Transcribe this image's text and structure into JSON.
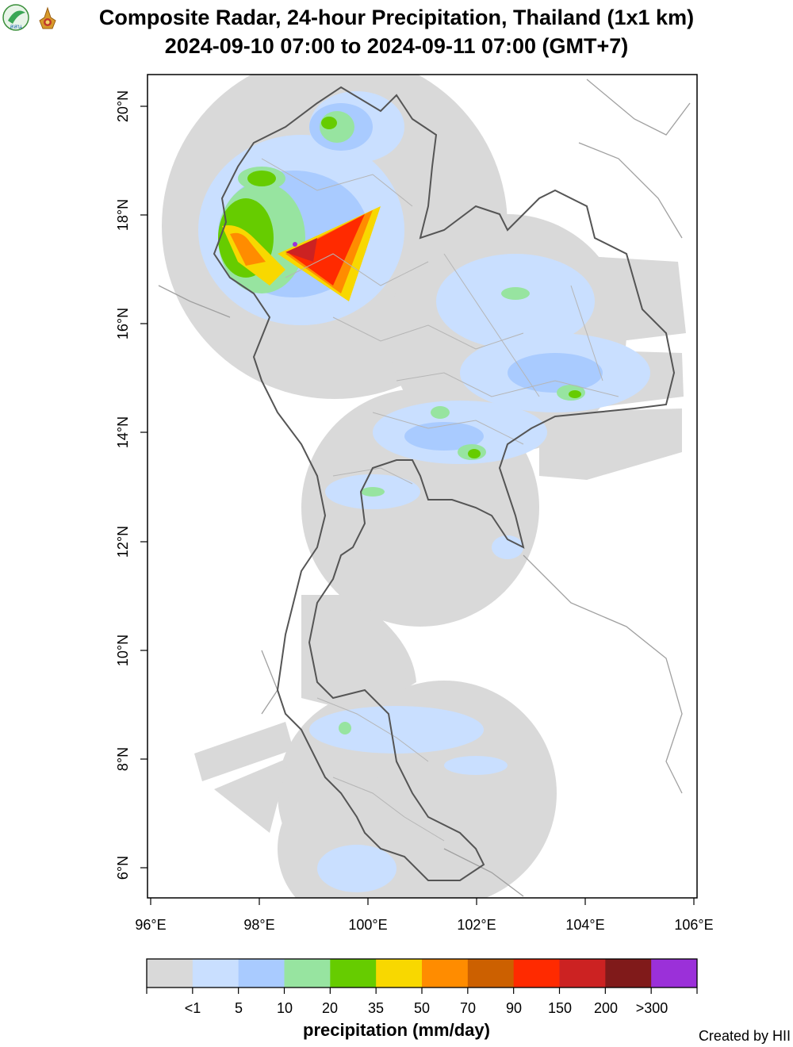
{
  "title_line1": "Composite Radar, 24-hour Precipitation, Thailand (1x1 km)",
  "title_line2": "2024-09-10 07:00 to 2024-09-11 07:00 (GMT+7)",
  "logos": [
    {
      "name": "hii-logo",
      "text": "สสน"
    },
    {
      "name": "royal-emblem-logo",
      "text": ""
    }
  ],
  "axes": {
    "x_ticks": [
      "96°E",
      "98°E",
      "100°E",
      "102°E",
      "104°E",
      "106°E"
    ],
    "y_ticks": [
      "6°N",
      "8°N",
      "10°N",
      "12°N",
      "14°N",
      "16°N",
      "18°N",
      "20°N"
    ]
  },
  "legend": {
    "title": "precipitation (mm/day)",
    "colors": [
      "#d9d9d9",
      "#c9dfff",
      "#a9cbff",
      "#97e4a0",
      "#66cc00",
      "#f8d800",
      "#ff8c00",
      "#cc6000",
      "#ff2a00",
      "#cc2222",
      "#801a1a",
      "#9b30d9"
    ],
    "labels": [
      "<1",
      "5",
      "10",
      "20",
      "35",
      "50",
      "70",
      "90",
      "150",
      "200",
      ">300"
    ]
  },
  "credit": "Created by HII",
  "colors": {
    "radar_coverage": "#d9d9d9",
    "border": "#555555",
    "province": "#9e9e9e"
  }
}
